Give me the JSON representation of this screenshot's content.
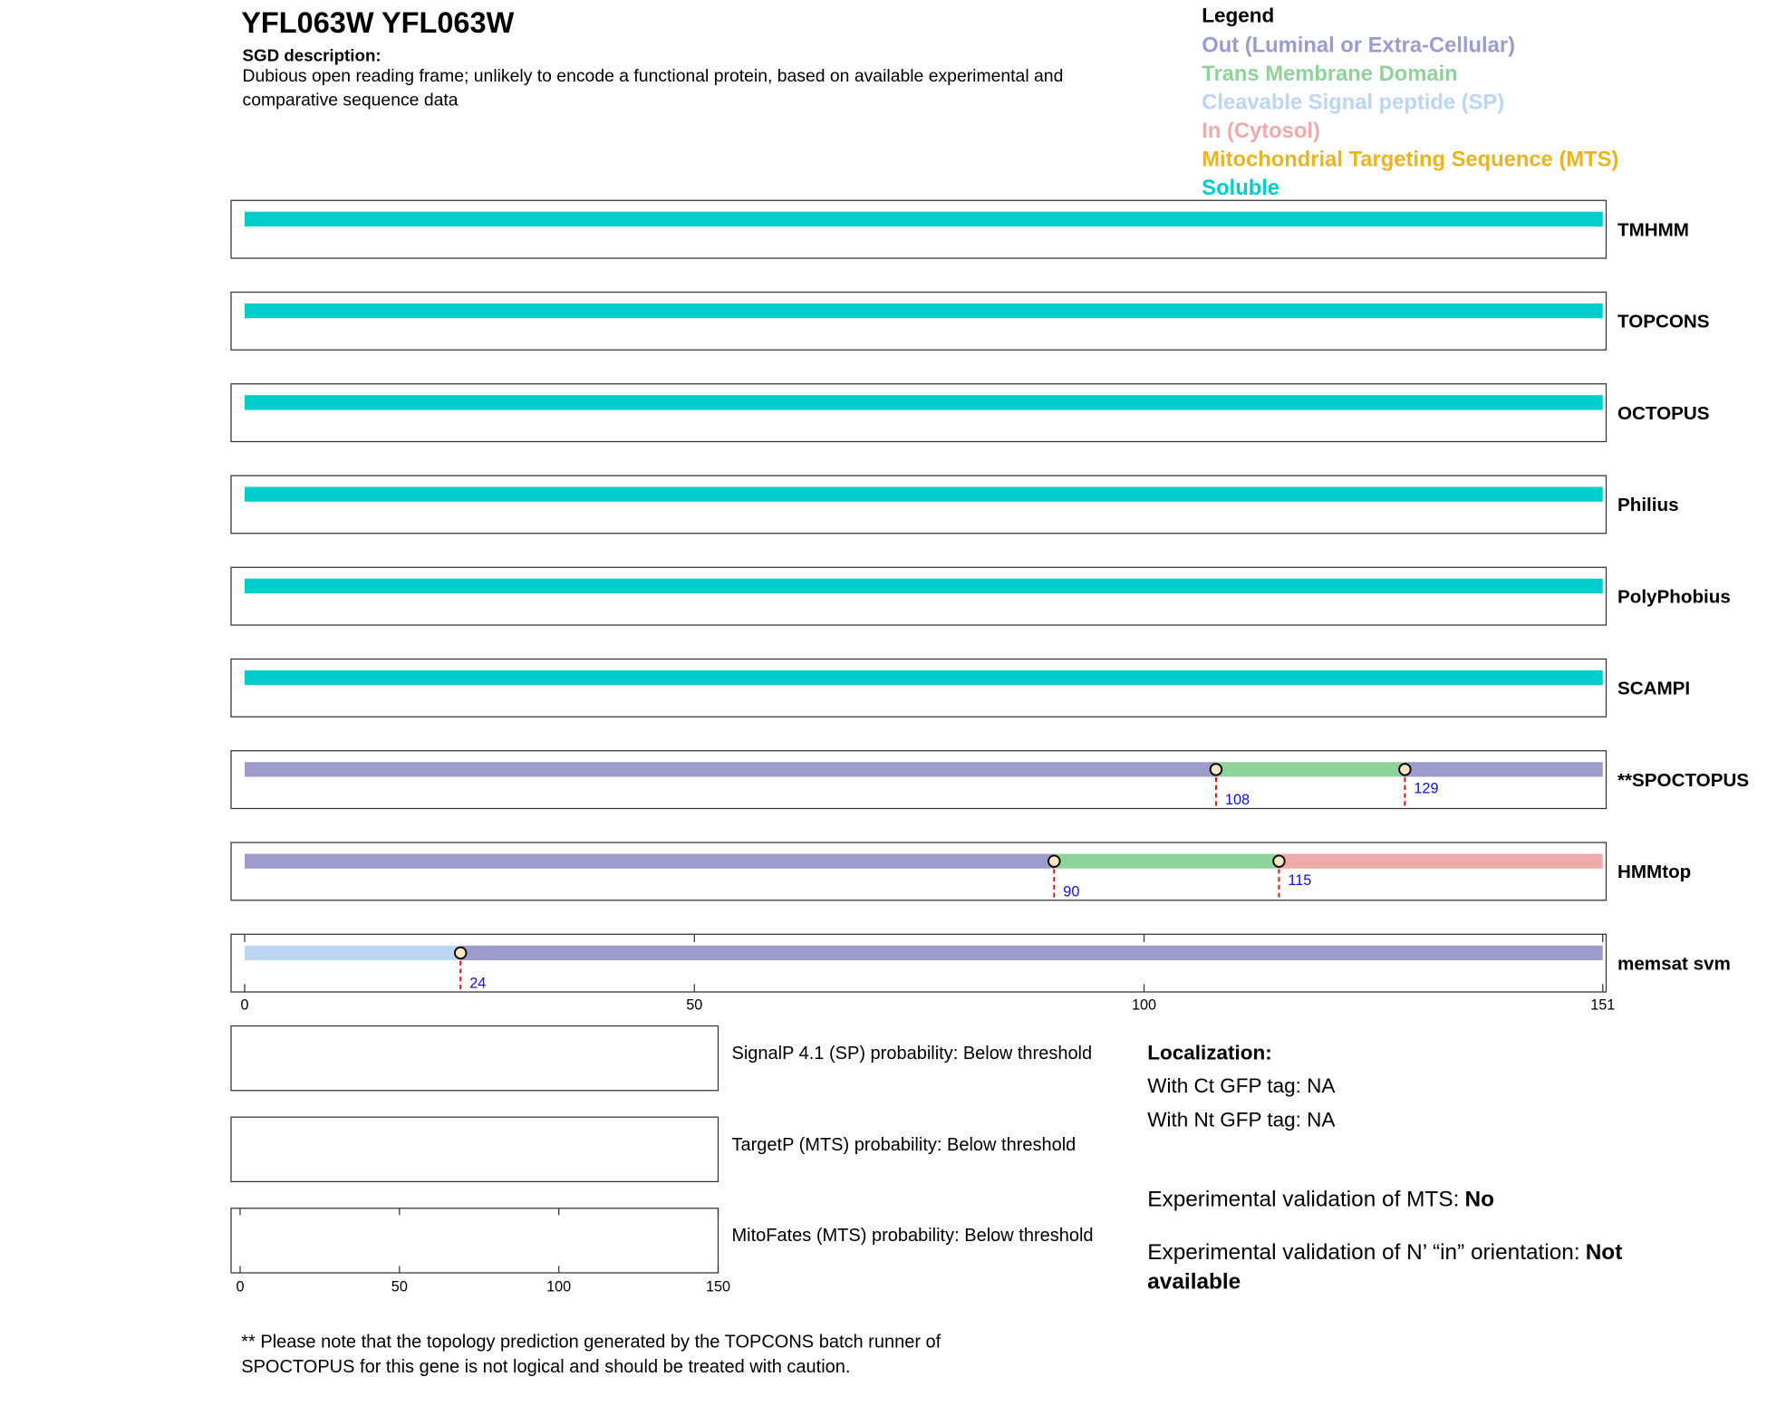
{
  "header": {
    "title": "YFL063W  YFL063W",
    "description_label": "SGD description:",
    "description": "Dubious open reading frame; unlikely to encode a functional protein, based on available experimental and comparative sequence data"
  },
  "legend": {
    "title": "Legend",
    "items": [
      {
        "label": "Out (Luminal or Extra-Cellular)",
        "color": "#9c9ccc"
      },
      {
        "label": "Trans Membrane Domain",
        "color": "#90d39a"
      },
      {
        "label": "Cleavable Signal peptide (SP)",
        "color": "#bcd5f3"
      },
      {
        "label": "In (Cytosol)",
        "color": "#efabab"
      },
      {
        "label": "Mitochondrial Targeting Sequence (MTS)",
        "color": "#e9b422"
      },
      {
        "label": "Soluble",
        "color": "#00cccc"
      }
    ]
  },
  "tracks": [
    {
      "label": "TMHMM",
      "segments": [
        {
          "start": 0,
          "end": 151,
          "color": "#00cccc"
        }
      ],
      "markers": []
    },
    {
      "label": "TOPCONS",
      "segments": [
        {
          "start": 0,
          "end": 151,
          "color": "#00cccc"
        }
      ],
      "markers": []
    },
    {
      "label": "OCTOPUS",
      "segments": [
        {
          "start": 0,
          "end": 151,
          "color": "#00cccc"
        }
      ],
      "markers": []
    },
    {
      "label": "Philius",
      "segments": [
        {
          "start": 0,
          "end": 151,
          "color": "#00cccc"
        }
      ],
      "markers": []
    },
    {
      "label": "PolyPhobius",
      "segments": [
        {
          "start": 0,
          "end": 151,
          "color": "#00cccc"
        }
      ],
      "markers": []
    },
    {
      "label": "SCAMPI",
      "segments": [
        {
          "start": 0,
          "end": 151,
          "color": "#00cccc"
        }
      ],
      "markers": []
    },
    {
      "label": "**SPOCTOPUS",
      "segments": [
        {
          "start": 0,
          "end": 108,
          "color": "#9c9ccc"
        },
        {
          "start": 108,
          "end": 129,
          "color": "#90d39a"
        },
        {
          "start": 129,
          "end": 151,
          "color": "#9c9ccc"
        }
      ],
      "markers": [
        108,
        129
      ]
    },
    {
      "label": "HMMtop",
      "segments": [
        {
          "start": 0,
          "end": 90,
          "color": "#9c9ccc"
        },
        {
          "start": 90,
          "end": 115,
          "color": "#90d39a"
        },
        {
          "start": 115,
          "end": 151,
          "color": "#efabab"
        }
      ],
      "markers": [
        90,
        115
      ]
    },
    {
      "label": "memsat svm",
      "segments": [
        {
          "start": 0,
          "end": 24,
          "color": "#bcd5f3"
        },
        {
          "start": 24,
          "end": 151,
          "color": "#9c9ccc"
        }
      ],
      "markers": [
        24
      ]
    }
  ],
  "axis": {
    "lim": [
      0,
      151
    ],
    "ticks": [
      0,
      50,
      100,
      151
    ]
  },
  "probabilities": [
    "SignalP 4.1 (SP) probability: Below threshold",
    "TargetP (MTS) probability: Below threshold",
    "MitoFates (MTS) probability: Below threshold"
  ],
  "probability_axis": {
    "lim": [
      0,
      150
    ],
    "ticks": [
      0,
      50,
      100,
      150
    ]
  },
  "localization": {
    "title": "Localization:",
    "ct": "With Ct GFP tag: NA",
    "nt": "With Nt GFP tag: NA",
    "mts_label": "Experimental validation of MTS:",
    "mts_value": "No",
    "orientation_label": "Experimental validation of N’ “in” orientation:",
    "orientation_value": "Not available"
  },
  "footnote": "** Please note that the topology prediction generated by the TOPCONS batch runner of SPOCTOPUS for this gene is not logical and should be treated with caution."
}
